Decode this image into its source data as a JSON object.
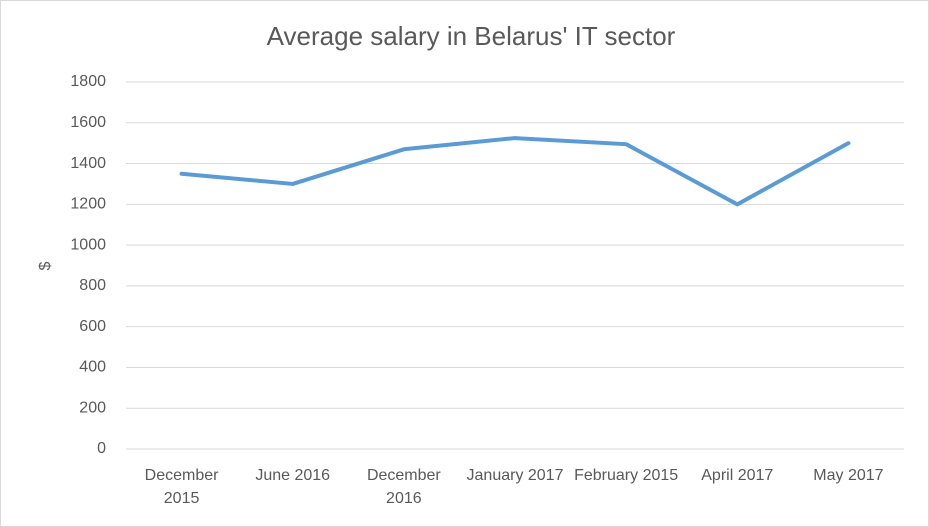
{
  "chart_data": {
    "type": "line",
    "title": "Average salary in Belarus' IT sector",
    "y_label": "$",
    "categories": [
      "December 2015",
      "June 2016",
      "December 2016",
      "January 2017",
      "February 2015",
      "April 2017",
      "May 2017"
    ],
    "series": [
      {
        "name": "Average salary",
        "color": "#5b9bd5",
        "values": [
          1350,
          1300,
          1470,
          1525,
          1495,
          1200,
          1500
        ]
      }
    ],
    "ylim": [
      0,
      1800
    ],
    "yticks": [
      0,
      200,
      400,
      600,
      800,
      1000,
      1200,
      1400,
      1600,
      1800
    ],
    "grid": true
  }
}
